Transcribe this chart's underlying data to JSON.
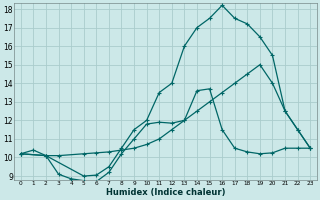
{
  "xlabel": "Humidex (Indice chaleur)",
  "bg_color": "#cce8e8",
  "grid_color": "#aacccc",
  "line_color": "#006666",
  "xlim": [
    -0.5,
    23.5
  ],
  "ylim": [
    8.8,
    18.3
  ],
  "xticks": [
    0,
    1,
    2,
    3,
    4,
    5,
    6,
    7,
    8,
    9,
    10,
    11,
    12,
    13,
    14,
    15,
    16,
    17,
    18,
    19,
    20,
    21,
    22,
    23
  ],
  "yticks": [
    9,
    10,
    11,
    12,
    13,
    14,
    15,
    16,
    17,
    18
  ],
  "line1_x": [
    0,
    1,
    2,
    3,
    4,
    5,
    6,
    7,
    8,
    9,
    10,
    11,
    12,
    13,
    14,
    15,
    16,
    17,
    18,
    19,
    20,
    21,
    22,
    23
  ],
  "line1_y": [
    10.2,
    10.4,
    10.1,
    9.1,
    8.85,
    8.75,
    8.7,
    9.2,
    10.2,
    11.0,
    11.8,
    11.9,
    11.85,
    12.0,
    13.6,
    13.7,
    11.5,
    10.5,
    10.3,
    10.2,
    10.25,
    10.5,
    10.5,
    10.5
  ],
  "line2_x": [
    0,
    2,
    5,
    6,
    7,
    8,
    9,
    10,
    11,
    12,
    13,
    14,
    15,
    16,
    17,
    18,
    19,
    20,
    21,
    22,
    23
  ],
  "line2_y": [
    10.2,
    10.1,
    9.0,
    9.05,
    9.5,
    10.5,
    11.5,
    12.0,
    13.5,
    14.0,
    16.0,
    17.0,
    17.5,
    18.2,
    17.5,
    17.2,
    16.5,
    15.5,
    12.5,
    11.5,
    10.5
  ],
  "line3_x": [
    0,
    2,
    3,
    5,
    6,
    7,
    8,
    9,
    10,
    11,
    12,
    13,
    14,
    15,
    16,
    17,
    18,
    19,
    20,
    21,
    22,
    23
  ],
  "line3_y": [
    10.2,
    10.1,
    10.1,
    10.2,
    10.25,
    10.3,
    10.4,
    10.5,
    10.7,
    11.0,
    11.5,
    12.0,
    12.5,
    13.0,
    13.5,
    14.0,
    14.5,
    15.0,
    14.0,
    12.5,
    11.5,
    10.5
  ],
  "marker": "+",
  "marker_size": 3,
  "lw": 0.9
}
